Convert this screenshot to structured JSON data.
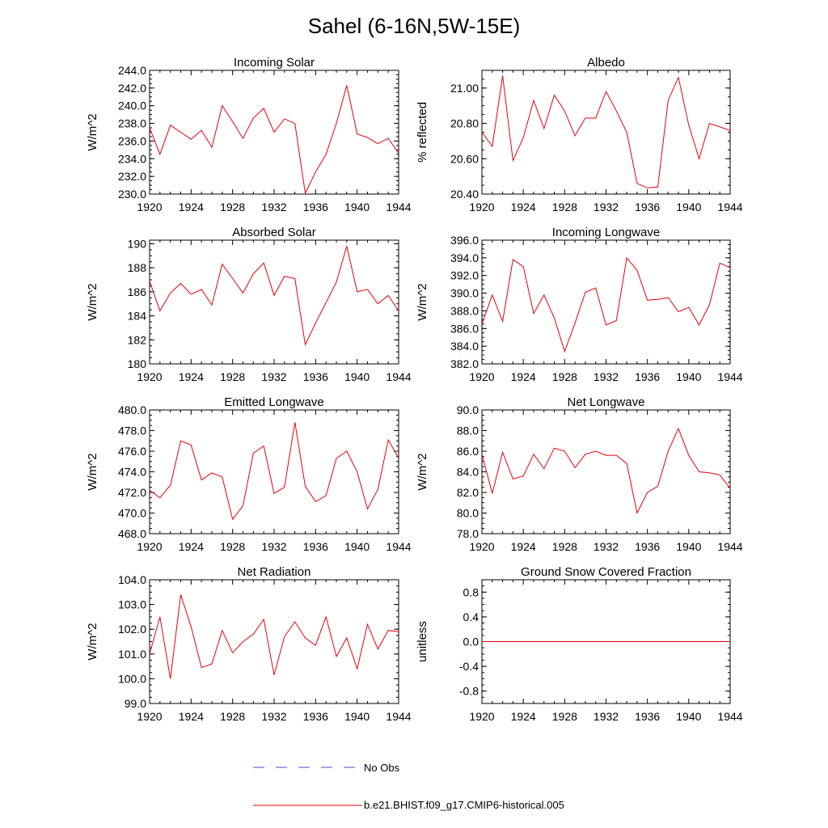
{
  "figure": {
    "title": "Sahel (6-16N,5W-15E)"
  },
  "legend": [
    {
      "label": "No Obs",
      "color": "#4a4ad0",
      "dash": "dashed"
    },
    {
      "label": "b.e21.BHIST.f09_g17.CMIP6-historical.005",
      "color": "#e8000b",
      "dash": "solid"
    }
  ],
  "chart_data": [
    {
      "type": "line",
      "title": "Incoming Solar",
      "ylabel": "W/m^2",
      "xlim": [
        1920,
        1944
      ],
      "ylim": [
        230,
        244
      ],
      "xticks": [
        "1920",
        "1924",
        "1928",
        "1932",
        "1936",
        "1940",
        "1944"
      ],
      "yticks": [
        "230.0",
        "232.0",
        "234.0",
        "236.0",
        "238.0",
        "240.0",
        "242.0",
        "244.0"
      ],
      "ytick_values": [
        230,
        232,
        234,
        236,
        238,
        240,
        242,
        244
      ],
      "x": [
        1920,
        1921,
        1922,
        1923,
        1924,
        1925,
        1926,
        1927,
        1928,
        1929,
        1930,
        1931,
        1932,
        1933,
        1934,
        1935,
        1936,
        1937,
        1938,
        1939,
        1940,
        1941,
        1942,
        1943,
        1944
      ],
      "series": [
        {
          "name": "b.e21.BHIST.f09_g17.CMIP6-historical.005",
          "color": "#e8000b",
          "values": [
            237.5,
            234.5,
            237.8,
            237.0,
            236.2,
            237.2,
            235.3,
            240.0,
            238.2,
            236.3,
            238.6,
            239.7,
            237.0,
            238.5,
            238.0,
            230.1,
            232.5,
            234.5,
            238.0,
            242.3,
            236.8,
            236.4,
            235.7,
            236.3,
            234.6
          ]
        }
      ]
    },
    {
      "type": "line",
      "title": "Albedo",
      "ylabel": "% reflected",
      "xlim": [
        1920,
        1944
      ],
      "ylim": [
        20.4,
        21.1
      ],
      "xticks": [
        "1920",
        "1924",
        "1928",
        "1932",
        "1936",
        "1940",
        "1944"
      ],
      "yticks": [
        "20.40",
        "20.60",
        "20.80",
        "21.00"
      ],
      "ytick_values": [
        20.4,
        20.6,
        20.8,
        21.0
      ],
      "x": [
        1920,
        1921,
        1922,
        1923,
        1924,
        1925,
        1926,
        1927,
        1928,
        1929,
        1930,
        1931,
        1932,
        1933,
        1934,
        1935,
        1936,
        1937,
        1938,
        1939,
        1940,
        1941,
        1942,
        1943,
        1944
      ],
      "series": [
        {
          "name": "b.e21.BHIST.f09_g17.CMIP6-historical.005",
          "color": "#e8000b",
          "values": [
            20.75,
            20.67,
            21.07,
            20.59,
            20.72,
            20.93,
            20.77,
            20.96,
            20.87,
            20.73,
            20.83,
            20.83,
            20.98,
            20.87,
            20.75,
            20.46,
            20.435,
            20.44,
            20.93,
            21.06,
            20.79,
            20.6,
            20.8,
            20.78,
            20.76
          ]
        }
      ]
    },
    {
      "type": "line",
      "title": "Absorbed Solar",
      "ylabel": "W/m^2",
      "xlim": [
        1920,
        1944
      ],
      "ylim": [
        180,
        190.3
      ],
      "xticks": [
        "1920",
        "1924",
        "1928",
        "1932",
        "1936",
        "1940",
        "1944"
      ],
      "yticks": [
        "180",
        "182",
        "184",
        "186",
        "188",
        "190"
      ],
      "ytick_values": [
        180,
        182,
        184,
        186,
        188,
        190
      ],
      "x": [
        1920,
        1921,
        1922,
        1923,
        1924,
        1925,
        1926,
        1927,
        1928,
        1929,
        1930,
        1931,
        1932,
        1933,
        1934,
        1935,
        1936,
        1937,
        1938,
        1939,
        1940,
        1941,
        1942,
        1943,
        1944
      ],
      "series": [
        {
          "name": "b.e21.BHIST.f09_g17.CMIP6-historical.005",
          "color": "#e8000b",
          "values": [
            186.9,
            184.4,
            185.9,
            186.7,
            185.8,
            186.2,
            184.9,
            188.3,
            187.1,
            185.9,
            187.5,
            188.4,
            185.7,
            187.3,
            187.1,
            181.6,
            183.4,
            185.1,
            186.8,
            189.8,
            186.0,
            186.2,
            185.0,
            185.7,
            184.4
          ]
        }
      ]
    },
    {
      "type": "line",
      "title": "Incoming Longwave",
      "ylabel": "W/m^2",
      "xlim": [
        1920,
        1944
      ],
      "ylim": [
        382,
        396
      ],
      "xticks": [
        "1920",
        "1924",
        "1928",
        "1932",
        "1936",
        "1940",
        "1944"
      ],
      "yticks": [
        "382.0",
        "384.0",
        "386.0",
        "388.0",
        "390.0",
        "392.0",
        "394.0",
        "396.0"
      ],
      "ytick_values": [
        382,
        384,
        386,
        388,
        390,
        392,
        394,
        396
      ],
      "x": [
        1920,
        1921,
        1922,
        1923,
        1924,
        1925,
        1926,
        1927,
        1928,
        1929,
        1930,
        1931,
        1932,
        1933,
        1934,
        1935,
        1936,
        1937,
        1938,
        1939,
        1940,
        1941,
        1942,
        1943,
        1944
      ],
      "series": [
        {
          "name": "b.e21.BHIST.f09_g17.CMIP6-historical.005",
          "color": "#e8000b",
          "values": [
            386.5,
            389.8,
            386.8,
            393.8,
            393.0,
            387.7,
            389.8,
            387.2,
            383.4,
            386.6,
            390.1,
            390.6,
            386.4,
            386.9,
            394.0,
            392.6,
            389.2,
            389.3,
            389.5,
            387.9,
            388.4,
            386.4,
            388.7,
            393.4,
            392.9
          ]
        }
      ]
    },
    {
      "type": "line",
      "title": "Emitted Longwave",
      "ylabel": "W/m^2",
      "xlim": [
        1920,
        1944
      ],
      "ylim": [
        468,
        480
      ],
      "xticks": [
        "1920",
        "1924",
        "1928",
        "1932",
        "1936",
        "1940",
        "1944"
      ],
      "yticks": [
        "468.0",
        "470.0",
        "472.0",
        "474.0",
        "476.0",
        "478.0",
        "480.0"
      ],
      "ytick_values": [
        468,
        470,
        472,
        474,
        476,
        478,
        480
      ],
      "x": [
        1920,
        1921,
        1922,
        1923,
        1924,
        1925,
        1926,
        1927,
        1928,
        1929,
        1930,
        1931,
        1932,
        1933,
        1934,
        1935,
        1936,
        1937,
        1938,
        1939,
        1940,
        1941,
        1942,
        1943,
        1944
      ],
      "series": [
        {
          "name": "b.e21.BHIST.f09_g17.CMIP6-historical.005",
          "color": "#e8000b",
          "values": [
            472.2,
            471.5,
            472.7,
            477.0,
            476.6,
            473.2,
            473.9,
            473.5,
            469.4,
            470.7,
            475.8,
            476.5,
            471.9,
            472.5,
            478.8,
            472.6,
            471.1,
            471.7,
            475.3,
            476.0,
            474.0,
            470.4,
            472.3,
            477.1,
            475.3
          ]
        }
      ]
    },
    {
      "type": "line",
      "title": "Net Longwave",
      "ylabel": "W/m^2",
      "xlim": [
        1920,
        1944
      ],
      "ylim": [
        78,
        90
      ],
      "xticks": [
        "1920",
        "1924",
        "1928",
        "1932",
        "1936",
        "1940",
        "1944"
      ],
      "yticks": [
        "78.0",
        "80.0",
        "82.0",
        "84.0",
        "86.0",
        "88.0",
        "90.0"
      ],
      "ytick_values": [
        78,
        80,
        82,
        84,
        86,
        88,
        90
      ],
      "x": [
        1920,
        1921,
        1922,
        1923,
        1924,
        1925,
        1926,
        1927,
        1928,
        1929,
        1930,
        1931,
        1932,
        1933,
        1934,
        1935,
        1936,
        1937,
        1938,
        1939,
        1940,
        1941,
        1942,
        1943,
        1944
      ],
      "series": [
        {
          "name": "b.e21.BHIST.f09_g17.CMIP6-historical.005",
          "color": "#e8000b",
          "values": [
            85.7,
            81.9,
            85.9,
            83.3,
            83.6,
            85.7,
            84.3,
            86.3,
            86.0,
            84.4,
            85.7,
            86.0,
            85.6,
            85.6,
            84.8,
            80.0,
            82.0,
            82.6,
            86.0,
            88.2,
            85.6,
            84.0,
            83.9,
            83.7,
            82.4
          ]
        }
      ]
    },
    {
      "type": "line",
      "title": "Net Radiation",
      "ylabel": "W/m^2",
      "xlim": [
        1920,
        1944
      ],
      "ylim": [
        99,
        104
      ],
      "xticks": [
        "1920",
        "1924",
        "1928",
        "1932",
        "1936",
        "1940",
        "1944"
      ],
      "yticks": [
        "99.0",
        "100.0",
        "101.0",
        "102.0",
        "103.0",
        "104.0"
      ],
      "ytick_values": [
        99,
        100,
        101,
        102,
        103,
        104
      ],
      "x": [
        1920,
        1921,
        1922,
        1923,
        1924,
        1925,
        1926,
        1927,
        1928,
        1929,
        1930,
        1931,
        1932,
        1933,
        1934,
        1935,
        1936,
        1937,
        1938,
        1939,
        1940,
        1941,
        1942,
        1943,
        1944
      ],
      "series": [
        {
          "name": "b.e21.BHIST.f09_g17.CMIP6-historical.005",
          "color": "#e8000b",
          "values": [
            101.0,
            102.5,
            100.0,
            103.4,
            102.1,
            100.45,
            100.6,
            101.95,
            101.05,
            101.5,
            101.8,
            102.4,
            100.15,
            101.7,
            102.3,
            101.65,
            101.35,
            102.5,
            100.9,
            101.65,
            100.4,
            102.2,
            101.2,
            101.95,
            101.9
          ]
        }
      ]
    },
    {
      "type": "line",
      "title": "Ground Snow Covered Fraction",
      "ylabel": "unitless",
      "xlim": [
        1920,
        1944
      ],
      "ylim": [
        -1,
        1
      ],
      "xticks": [
        "1920",
        "1924",
        "1928",
        "1932",
        "1936",
        "1940",
        "1944"
      ],
      "yticks": [
        "-0.8",
        "-0.4",
        "0.0",
        "0.4",
        "0.8"
      ],
      "ytick_values": [
        -0.8,
        -0.4,
        0.0,
        0.4,
        0.8
      ],
      "x": [
        1920,
        1944
      ],
      "series": [
        {
          "name": "b.e21.BHIST.f09_g17.CMIP6-historical.005",
          "color": "#e8000b",
          "values": [
            0.0,
            0.0
          ]
        }
      ]
    }
  ]
}
